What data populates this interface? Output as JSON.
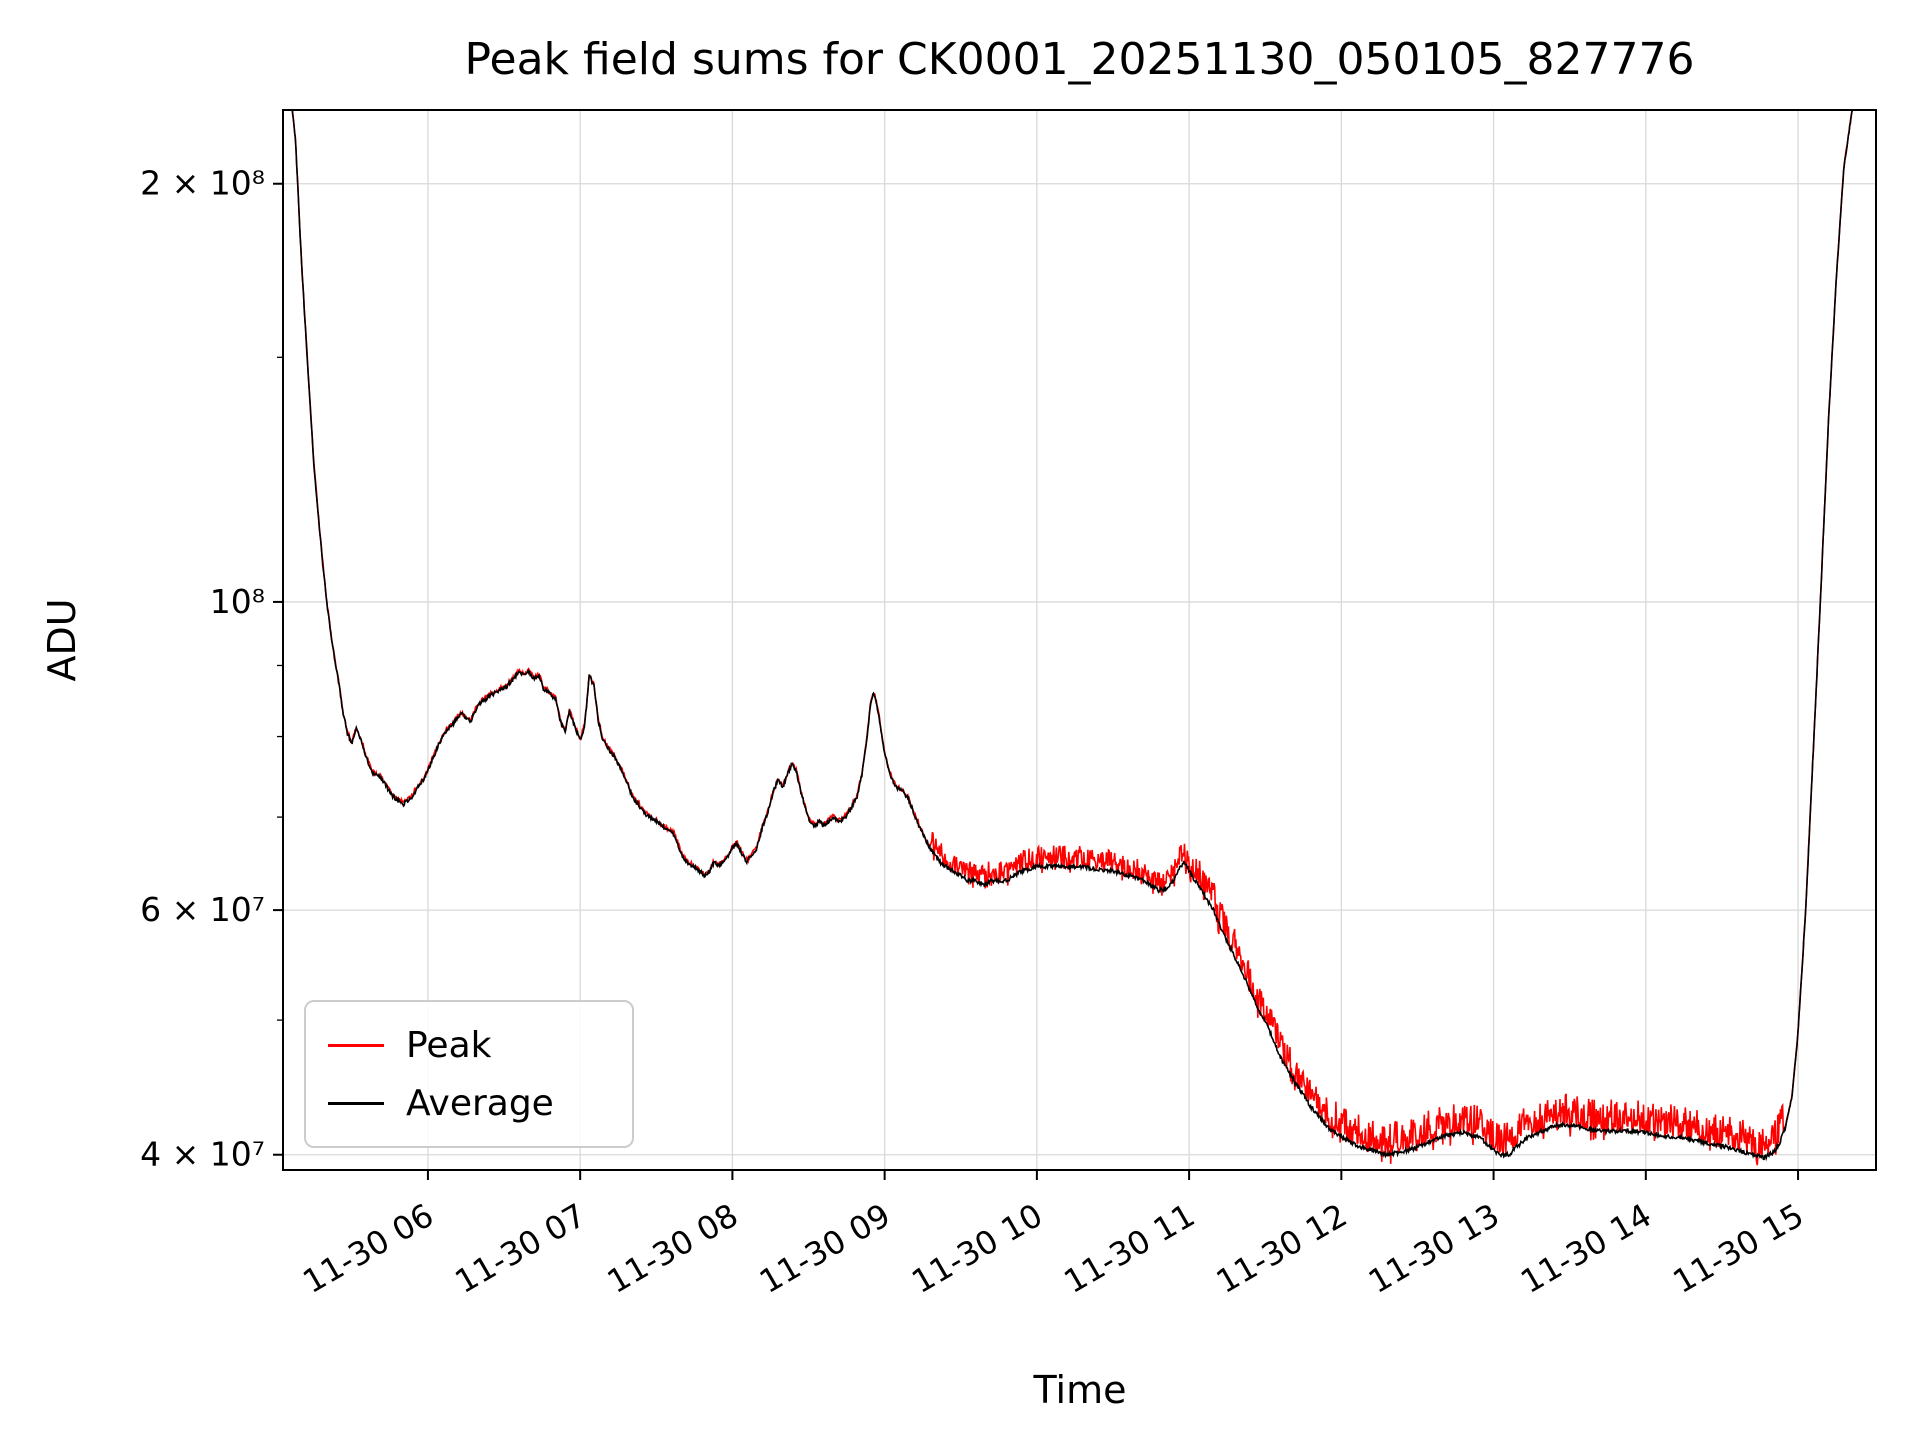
{
  "chart_data": {
    "type": "line",
    "title": "Peak field sums for CK0001_20251130_050105_827776",
    "xlabel": "Time",
    "ylabel": "ADU",
    "yscale": "log",
    "grid": true,
    "legend_position": "lower-left",
    "xlim_hours": [
      5.048,
      15.512
    ],
    "ylim": [
      39000000,
      226000000
    ],
    "x_ticks": [
      {
        "hour": 6,
        "label": "11-30 06"
      },
      {
        "hour": 7,
        "label": "11-30 07"
      },
      {
        "hour": 8,
        "label": "11-30 08"
      },
      {
        "hour": 9,
        "label": "11-30 09"
      },
      {
        "hour": 10,
        "label": "11-30 10"
      },
      {
        "hour": 11,
        "label": "11-30 11"
      },
      {
        "hour": 12,
        "label": "11-30 12"
      },
      {
        "hour": 13,
        "label": "11-30 13"
      },
      {
        "hour": 14,
        "label": "11-30 14"
      },
      {
        "hour": 15,
        "label": "11-30 15"
      }
    ],
    "y_ticks": [
      {
        "value": 40000000,
        "label": "4 × 10⁷"
      },
      {
        "value": 60000000,
        "label": "6 × 10⁷"
      },
      {
        "value": 100000000,
        "label": "10⁸"
      },
      {
        "value": 200000000,
        "label": "2 × 10⁸"
      }
    ],
    "y_minor_ticks": [
      50000000,
      70000000,
      80000000,
      90000000,
      150000000
    ],
    "legend": [
      {
        "label": "Peak",
        "color": "#ff0000"
      },
      {
        "label": "Average",
        "color": "#000000"
      }
    ],
    "series": {
      "value_scale": 10000000,
      "average_jitter": 0.0035,
      "average_control_points": [
        [
          5.048,
          23.0
        ],
        [
          5.1,
          23.0
        ],
        [
          5.13,
          21.5
        ],
        [
          5.17,
          17.5
        ],
        [
          5.21,
          14.8
        ],
        [
          5.25,
          12.6
        ],
        [
          5.29,
          11.2
        ],
        [
          5.33,
          10.1
        ],
        [
          5.37,
          9.35
        ],
        [
          5.41,
          8.8
        ],
        [
          5.44,
          8.35
        ],
        [
          5.47,
          8.05
        ],
        [
          5.5,
          7.9
        ],
        [
          5.53,
          8.1
        ],
        [
          5.56,
          7.95
        ],
        [
          5.6,
          7.7
        ],
        [
          5.63,
          7.55
        ],
        [
          5.67,
          7.5
        ],
        [
          5.7,
          7.45
        ],
        [
          5.73,
          7.35
        ],
        [
          5.77,
          7.25
        ],
        [
          5.8,
          7.2
        ],
        [
          5.84,
          7.15
        ],
        [
          5.87,
          7.2
        ],
        [
          5.9,
          7.25
        ],
        [
          5.93,
          7.35
        ],
        [
          5.97,
          7.45
        ],
        [
          6.0,
          7.55
        ],
        [
          6.03,
          7.7
        ],
        [
          6.07,
          7.9
        ],
        [
          6.1,
          8.0
        ],
        [
          6.13,
          8.1
        ],
        [
          6.16,
          8.15
        ],
        [
          6.19,
          8.25
        ],
        [
          6.22,
          8.3
        ],
        [
          6.25,
          8.25
        ],
        [
          6.28,
          8.2
        ],
        [
          6.31,
          8.35
        ],
        [
          6.34,
          8.45
        ],
        [
          6.37,
          8.5
        ],
        [
          6.4,
          8.55
        ],
        [
          6.44,
          8.6
        ],
        [
          6.48,
          8.65
        ],
        [
          6.52,
          8.7
        ],
        [
          6.56,
          8.8
        ],
        [
          6.6,
          8.9
        ],
        [
          6.63,
          8.85
        ],
        [
          6.66,
          8.9
        ],
        [
          6.7,
          8.8
        ],
        [
          6.73,
          8.85
        ],
        [
          6.76,
          8.65
        ],
        [
          6.8,
          8.6
        ],
        [
          6.84,
          8.5
        ],
        [
          6.87,
          8.2
        ],
        [
          6.9,
          8.05
        ],
        [
          6.93,
          8.35
        ],
        [
          6.96,
          8.15
        ],
        [
          7.0,
          7.95
        ],
        [
          7.03,
          8.15
        ],
        [
          7.06,
          8.85
        ],
        [
          7.09,
          8.7
        ],
        [
          7.12,
          8.2
        ],
        [
          7.15,
          7.95
        ],
        [
          7.18,
          7.85
        ],
        [
          7.22,
          7.75
        ],
        [
          7.26,
          7.6
        ],
        [
          7.3,
          7.45
        ],
        [
          7.34,
          7.25
        ],
        [
          7.38,
          7.15
        ],
        [
          7.42,
          7.05
        ],
        [
          7.46,
          7.0
        ],
        [
          7.5,
          6.95
        ],
        [
          7.54,
          6.9
        ],
        [
          7.58,
          6.85
        ],
        [
          7.62,
          6.8
        ],
        [
          7.66,
          6.6
        ],
        [
          7.7,
          6.5
        ],
        [
          7.74,
          6.45
        ],
        [
          7.78,
          6.4
        ],
        [
          7.82,
          6.35
        ],
        [
          7.85,
          6.4
        ],
        [
          7.88,
          6.5
        ],
        [
          7.91,
          6.45
        ],
        [
          7.94,
          6.5
        ],
        [
          7.97,
          6.55
        ],
        [
          8.0,
          6.65
        ],
        [
          8.03,
          6.7
        ],
        [
          8.06,
          6.6
        ],
        [
          8.09,
          6.5
        ],
        [
          8.12,
          6.55
        ],
        [
          8.16,
          6.65
        ],
        [
          8.2,
          6.9
        ],
        [
          8.24,
          7.1
        ],
        [
          8.27,
          7.3
        ],
        [
          8.3,
          7.45
        ],
        [
          8.33,
          7.35
        ],
        [
          8.36,
          7.5
        ],
        [
          8.39,
          7.65
        ],
        [
          8.42,
          7.55
        ],
        [
          8.45,
          7.3
        ],
        [
          8.48,
          7.1
        ],
        [
          8.51,
          6.95
        ],
        [
          8.54,
          6.9
        ],
        [
          8.57,
          6.95
        ],
        [
          8.6,
          6.9
        ],
        [
          8.63,
          6.95
        ],
        [
          8.66,
          7.0
        ],
        [
          8.7,
          6.95
        ],
        [
          8.74,
          7.0
        ],
        [
          8.78,
          7.1
        ],
        [
          8.82,
          7.25
        ],
        [
          8.85,
          7.5
        ],
        [
          8.88,
          7.9
        ],
        [
          8.91,
          8.5
        ],
        [
          8.93,
          8.6
        ],
        [
          8.96,
          8.3
        ],
        [
          8.99,
          7.9
        ],
        [
          9.02,
          7.6
        ],
        [
          9.05,
          7.45
        ],
        [
          9.08,
          7.35
        ],
        [
          9.12,
          7.3
        ],
        [
          9.16,
          7.2
        ],
        [
          9.2,
          7.0
        ],
        [
          9.24,
          6.85
        ],
        [
          9.28,
          6.7
        ],
        [
          9.32,
          6.6
        ],
        [
          9.36,
          6.5
        ],
        [
          9.4,
          6.45
        ],
        [
          9.45,
          6.4
        ],
        [
          9.5,
          6.35
        ],
        [
          9.55,
          6.3
        ],
        [
          9.6,
          6.3
        ],
        [
          9.65,
          6.25
        ],
        [
          9.7,
          6.3
        ],
        [
          9.75,
          6.3
        ],
        [
          9.8,
          6.3
        ],
        [
          9.85,
          6.35
        ],
        [
          9.9,
          6.4
        ],
        [
          9.95,
          6.42
        ],
        [
          10.0,
          6.45
        ],
        [
          10.1,
          6.45
        ],
        [
          10.2,
          6.45
        ],
        [
          10.3,
          6.45
        ],
        [
          10.4,
          6.42
        ],
        [
          10.5,
          6.4
        ],
        [
          10.6,
          6.35
        ],
        [
          10.7,
          6.3
        ],
        [
          10.75,
          6.25
        ],
        [
          10.8,
          6.2
        ],
        [
          10.85,
          6.22
        ],
        [
          10.9,
          6.3
        ],
        [
          10.94,
          6.45
        ],
        [
          10.97,
          6.5
        ],
        [
          11.0,
          6.4
        ],
        [
          11.04,
          6.3
        ],
        [
          11.08,
          6.2
        ],
        [
          11.12,
          6.1
        ],
        [
          11.16,
          6.0
        ],
        [
          11.2,
          5.85
        ],
        [
          11.25,
          5.7
        ],
        [
          11.3,
          5.55
        ],
        [
          11.35,
          5.4
        ],
        [
          11.4,
          5.25
        ],
        [
          11.45,
          5.1
        ],
        [
          11.5,
          5.0
        ],
        [
          11.55,
          4.85
        ],
        [
          11.6,
          4.7
        ],
        [
          11.65,
          4.6
        ],
        [
          11.7,
          4.5
        ],
        [
          11.75,
          4.42
        ],
        [
          11.8,
          4.33
        ],
        [
          11.85,
          4.27
        ],
        [
          11.9,
          4.2
        ],
        [
          11.95,
          4.15
        ],
        [
          12.0,
          4.12
        ],
        [
          12.1,
          4.06
        ],
        [
          12.2,
          4.03
        ],
        [
          12.3,
          4.0
        ],
        [
          12.4,
          4.02
        ],
        [
          12.5,
          4.05
        ],
        [
          12.6,
          4.1
        ],
        [
          12.7,
          4.13
        ],
        [
          12.8,
          4.15
        ],
        [
          12.9,
          4.12
        ],
        [
          12.95,
          4.08
        ],
        [
          13.0,
          4.03
        ],
        [
          13.05,
          4.0
        ],
        [
          13.1,
          4.0
        ],
        [
          13.15,
          4.05
        ],
        [
          13.2,
          4.1
        ],
        [
          13.3,
          4.15
        ],
        [
          13.4,
          4.2
        ],
        [
          13.5,
          4.2
        ],
        [
          13.6,
          4.18
        ],
        [
          13.7,
          4.16
        ],
        [
          13.8,
          4.16
        ],
        [
          13.9,
          4.16
        ],
        [
          14.0,
          4.15
        ],
        [
          14.1,
          4.13
        ],
        [
          14.2,
          4.12
        ],
        [
          14.3,
          4.1
        ],
        [
          14.4,
          4.08
        ],
        [
          14.5,
          4.06
        ],
        [
          14.6,
          4.03
        ],
        [
          14.7,
          4.0
        ],
        [
          14.78,
          3.98
        ],
        [
          14.84,
          4.02
        ],
        [
          14.88,
          4.08
        ],
        [
          14.92,
          4.2
        ],
        [
          14.96,
          4.4
        ],
        [
          15.0,
          4.9
        ],
        [
          15.05,
          6.0
        ],
        [
          15.1,
          7.8
        ],
        [
          15.15,
          10.2
        ],
        [
          15.2,
          13.5
        ],
        [
          15.25,
          17.0
        ],
        [
          15.3,
          20.5
        ],
        [
          15.36,
          22.8
        ],
        [
          15.512,
          23.0
        ]
      ],
      "peak_noise_regions": [
        {
          "t0": 5.0,
          "t1": 9.3,
          "amp": 0.006
        },
        {
          "t0": 9.3,
          "t1": 10.95,
          "amp": 0.035
        },
        {
          "t0": 10.95,
          "t1": 11.95,
          "amp": 0.05
        },
        {
          "t0": 11.95,
          "t1": 14.9,
          "amp": 0.055
        },
        {
          "t0": 14.9,
          "t1": 15.6,
          "amp": 0.004
        }
      ]
    }
  }
}
